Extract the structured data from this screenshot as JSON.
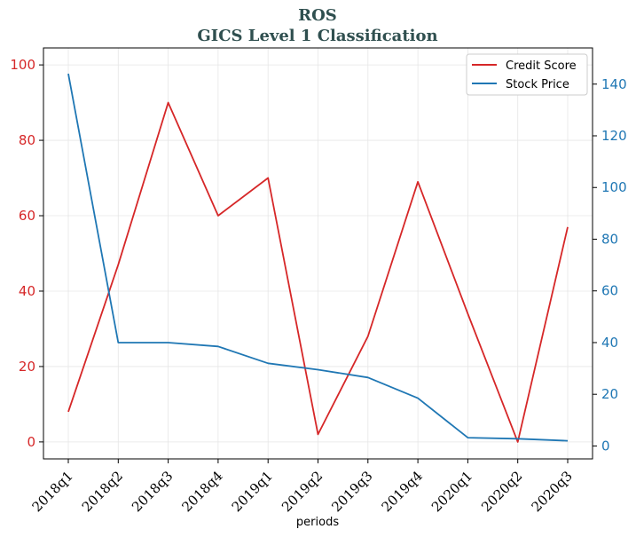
{
  "chart_data": {
    "type": "line",
    "title": "ROS",
    "subtitle": "GICS Level 1 Classification",
    "xlabel": "periods",
    "categories": [
      "2018q1",
      "2018q2",
      "2018q3",
      "2018q4",
      "2019q1",
      "2019q2",
      "2019q3",
      "2019q4",
      "2020q1",
      "2020q2",
      "2020q3"
    ],
    "series": [
      {
        "name": "Credit Score",
        "axis": "left",
        "color": "#d62728",
        "values": [
          8,
          47,
          90,
          60,
          70,
          2,
          28,
          69,
          34,
          0,
          57
        ]
      },
      {
        "name": "Stock Price",
        "axis": "right",
        "color": "#1f77b4",
        "values": [
          144,
          40,
          40,
          38.5,
          32,
          29.5,
          26.5,
          18.5,
          3.2,
          2.8,
          2
        ]
      }
    ],
    "ylim_left": [
      -4.5,
      104.5
    ],
    "yticks_left": [
      0,
      20,
      40,
      60,
      80,
      100
    ],
    "ylim_right": [
      -5,
      154
    ],
    "yticks_right": [
      0,
      20,
      40,
      60,
      80,
      100,
      120,
      140
    ],
    "grid": true,
    "legend": "top-right"
  }
}
